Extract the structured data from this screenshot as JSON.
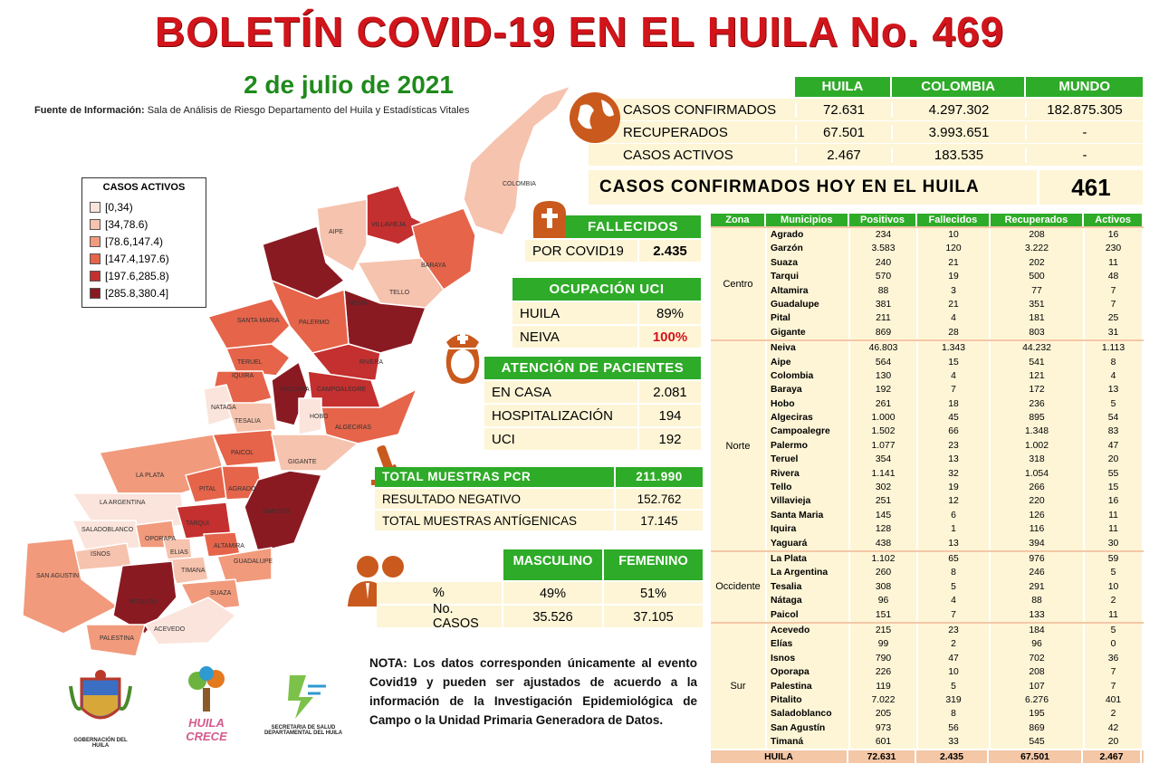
{
  "title": "BOLETÍN COVID-19 EN EL HUILA No. 469",
  "date": "2 de julio de 2021",
  "source_label": "Fuente de Información:",
  "source_text": "Sala de Análisis de Riesgo Departamento del Huila y Estadísticas Vitales",
  "summary": {
    "headers": [
      "HUILA",
      "COLOMBIA",
      "MUNDO"
    ],
    "rows": [
      {
        "label": "CASOS CONFIRMADOS",
        "huila": "72.631",
        "colombia": "4.297.302",
        "mundo": "182.875.305"
      },
      {
        "label": "RECUPERADOS",
        "huila": "67.501",
        "colombia": "3.993.651",
        "mundo": "-"
      },
      {
        "label": "CASOS ACTIVOS",
        "huila": "2.467",
        "colombia": "183.535",
        "mundo": "-"
      }
    ],
    "today_label": "CASOS CONFIRMADOS HOY EN EL HUILA",
    "today_value": "461"
  },
  "fallecidos": {
    "title": "FALLECIDOS",
    "label": "POR COVID19",
    "value": "2.435"
  },
  "uci": {
    "title": "OCUPACIÓN UCI",
    "rows": [
      {
        "label": "HUILA",
        "value": "89%"
      },
      {
        "label": "NEIVA",
        "value": "100%"
      }
    ]
  },
  "atencion": {
    "title": "ATENCIÓN DE PACIENTES",
    "rows": [
      {
        "label": "EN CASA",
        "value": "2.081"
      },
      {
        "label": "HOSPITALIZACIÓN",
        "value": "194"
      },
      {
        "label": "UCI",
        "value": "192"
      }
    ]
  },
  "pcr": {
    "title": "TOTAL MUESTRAS PCR",
    "title_value": "211.990",
    "rows": [
      {
        "label": "RESULTADO  NEGATIVO",
        "value": "152.762"
      },
      {
        "label": "TOTAL MUESTRAS ANTÍGENICAS",
        "value": "17.145"
      }
    ]
  },
  "sexo": {
    "headers": [
      "MASCULINO",
      "FEMENINO"
    ],
    "rows": [
      {
        "label": "%",
        "m": "49%",
        "f": "51%"
      },
      {
        "label": "No. CASOS",
        "m": "35.526",
        "f": "37.105"
      }
    ]
  },
  "nota": {
    "bold": "NOTA:",
    "text": " Los datos corresponden únicamente al evento Covid19 y pueden ser ajustados de acuerdo a la información de la Investigación Epidemiológica de Campo o la Unidad Primaria Generadora de Datos."
  },
  "legend": {
    "title": "CASOS ACTIVOS",
    "items": [
      {
        "label": "[0,34)",
        "color": "#fbe4dc"
      },
      {
        "label": "[34,78.6)",
        "color": "#f6c3ae"
      },
      {
        "label": "[78.6,147.4)",
        "color": "#f19a7c"
      },
      {
        "label": "[147.4,197.6)",
        "color": "#e5644a"
      },
      {
        "label": "[197.6,285.8)",
        "color": "#c42f2f"
      },
      {
        "label": "[285.8,380.4]",
        "color": "#8a1a22"
      }
    ]
  },
  "map_labels": [
    "COLOMBIA",
    "VILLAVIEJA",
    "BARAYA",
    "AIPE",
    "TELLO",
    "NEIVA",
    "SANTA MARIA",
    "PALERMO",
    "TERUEL",
    "RIVERA",
    "IQUIRA",
    "YAGUARA",
    "CAMPOALEGRE",
    "NATAGA",
    "TESALIA",
    "HOBO",
    "ALGECIRAS",
    "PAICOL",
    "GIGANTE",
    "LA PLATA",
    "PITAL",
    "AGRADO",
    "LA ARGENTINA",
    "GARZON",
    "SALADOBLANCO",
    "OPORAPA",
    "TARQUI",
    "ELIAS",
    "ISNOS",
    "ALTAMIRA",
    "TIMANA",
    "GUADALUPE",
    "SAN AGUSTIN",
    "SUAZA",
    "PITALITO",
    "ACEVEDO",
    "PALESTINA"
  ],
  "table": {
    "headers": [
      "Zona",
      "Municipios",
      "Positivos",
      "Fallecidos",
      "Recuperados",
      "Activos"
    ],
    "zones": [
      {
        "name": "Centro",
        "rows": [
          [
            "Agrado",
            "234",
            "10",
            "208",
            "16"
          ],
          [
            "Garzón",
            "3.583",
            "120",
            "3.222",
            "230"
          ],
          [
            "Suaza",
            "240",
            "21",
            "202",
            "11"
          ],
          [
            "Tarqui",
            "570",
            "19",
            "500",
            "48"
          ],
          [
            "Altamira",
            "88",
            "3",
            "77",
            "7"
          ],
          [
            "Guadalupe",
            "381",
            "21",
            "351",
            "7"
          ],
          [
            "Pital",
            "211",
            "4",
            "181",
            "25"
          ],
          [
            "Gigante",
            "869",
            "28",
            "803",
            "31"
          ]
        ]
      },
      {
        "name": "Norte",
        "rows": [
          [
            "Neiva",
            "46.803",
            "1.343",
            "44.232",
            "1.113"
          ],
          [
            "Aipe",
            "564",
            "15",
            "541",
            "8"
          ],
          [
            "Colombia",
            "130",
            "4",
            "121",
            "4"
          ],
          [
            "Baraya",
            "192",
            "7",
            "172",
            "13"
          ],
          [
            "Hobo",
            "261",
            "18",
            "236",
            "5"
          ],
          [
            "Algeciras",
            "1.000",
            "45",
            "895",
            "54"
          ],
          [
            "Campoalegre",
            "1.502",
            "66",
            "1.348",
            "83"
          ],
          [
            "Palermo",
            "1.077",
            "23",
            "1.002",
            "47"
          ],
          [
            "Teruel",
            "354",
            "13",
            "318",
            "20"
          ],
          [
            "Rivera",
            "1.141",
            "32",
            "1.054",
            "55"
          ],
          [
            "Tello",
            "302",
            "19",
            "266",
            "15"
          ],
          [
            "Villavieja",
            "251",
            "12",
            "220",
            "16"
          ],
          [
            "Santa Maria",
            "145",
            "6",
            "126",
            "11"
          ],
          [
            "Iquira",
            "128",
            "1",
            "116",
            "11"
          ],
          [
            "Yaguará",
            "438",
            "13",
            "394",
            "30"
          ]
        ]
      },
      {
        "name": "Occidente",
        "rows": [
          [
            "La Plata",
            "1.102",
            "65",
            "976",
            "59"
          ],
          [
            "La Argentina",
            "260",
            "8",
            "246",
            "5"
          ],
          [
            "Tesalia",
            "308",
            "5",
            "291",
            "10"
          ],
          [
            "Nátaga",
            "96",
            "4",
            "88",
            "2"
          ],
          [
            "Paicol",
            "151",
            "7",
            "133",
            "11"
          ]
        ]
      },
      {
        "name": "Sur",
        "rows": [
          [
            "Acevedo",
            "215",
            "23",
            "184",
            "5"
          ],
          [
            "Elías",
            "99",
            "2",
            "96",
            "0"
          ],
          [
            "Isnos",
            "790",
            "47",
            "702",
            "36"
          ],
          [
            "Oporapa",
            "226",
            "10",
            "208",
            "7"
          ],
          [
            "Palestina",
            "119",
            "5",
            "107",
            "7"
          ],
          [
            "Pitalito",
            "7.022",
            "319",
            "6.276",
            "401"
          ],
          [
            "Saladoblanco",
            "205",
            "8",
            "195",
            "2"
          ],
          [
            "San Agustín",
            "973",
            "56",
            "869",
            "42"
          ],
          [
            "Timaná",
            "601",
            "33",
            "545",
            "20"
          ]
        ]
      }
    ],
    "total": [
      "HUILA",
      "72.631",
      "2.435",
      "67.501",
      "2.467"
    ]
  },
  "logos": {
    "gobernacion": "GOBERNACIÓN DEL HUILA",
    "huila_crece": "HUILA CRECE",
    "secretaria": "SECRETARIA DE SALUD DEPARTAMENTAL DEL HUILA"
  },
  "colors": {
    "title_red": "#d2141b",
    "green": "#2eab28",
    "cream": "#fdf5d6",
    "highlight_red": "#d2141b"
  }
}
